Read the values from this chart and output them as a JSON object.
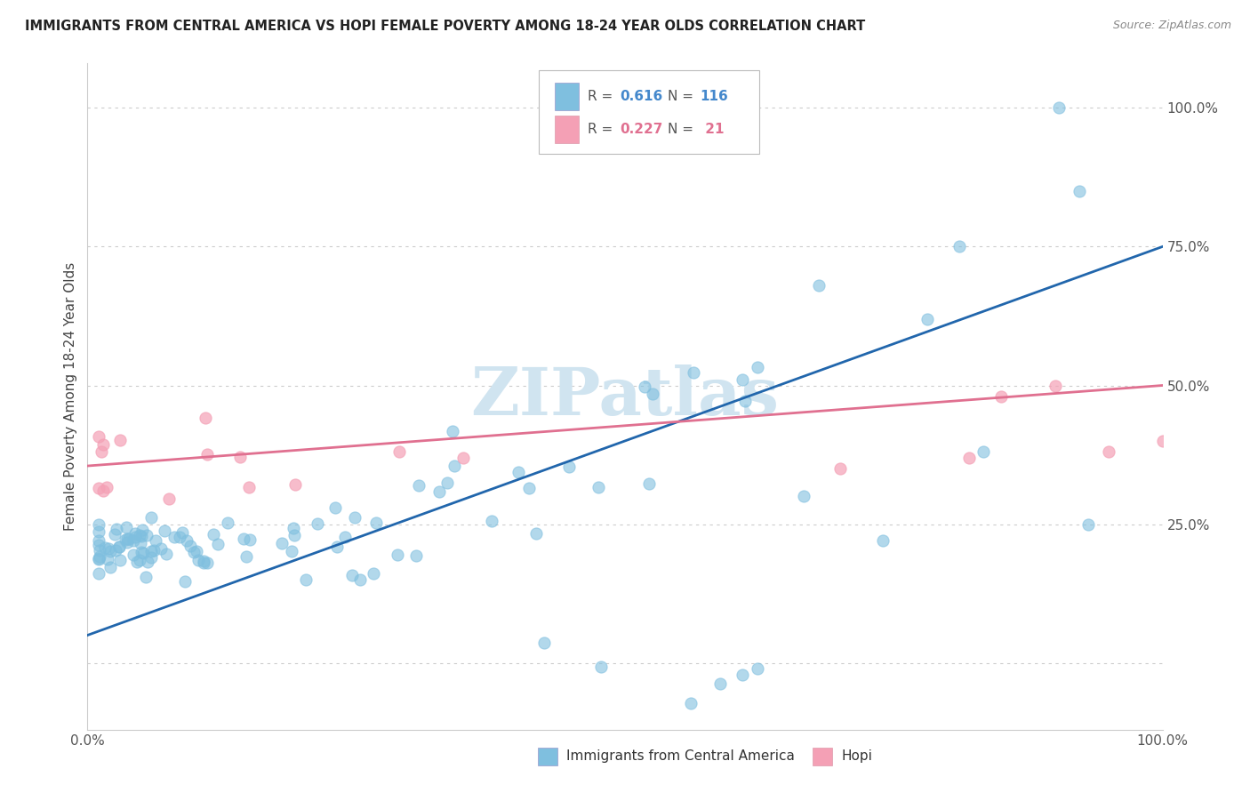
{
  "title": "IMMIGRANTS FROM CENTRAL AMERICA VS HOPI FEMALE POVERTY AMONG 18-24 YEAR OLDS CORRELATION CHART",
  "source": "Source: ZipAtlas.com",
  "ylabel": "Female Poverty Among 18-24 Year Olds",
  "blue_color": "#7fbfdf",
  "pink_color": "#f4a0b5",
  "blue_line_color": "#2166ac",
  "pink_line_color": "#e07090",
  "blue_text_color": "#4488cc",
  "pink_text_color": "#e07090",
  "watermark_color": "#d0e4f0",
  "background_color": "#ffffff",
  "grid_color": "#cccccc",
  "R_blue": 0.616,
  "N_blue": 116,
  "R_pink": 0.227,
  "N_pink": 21,
  "blue_line_y0": 0.05,
  "blue_line_y1": 0.75,
  "pink_line_y0": 0.355,
  "pink_line_y1": 0.5,
  "ylim_min": -0.12,
  "ylim_max": 1.08,
  "xlim_min": 0.0,
  "xlim_max": 1.0
}
